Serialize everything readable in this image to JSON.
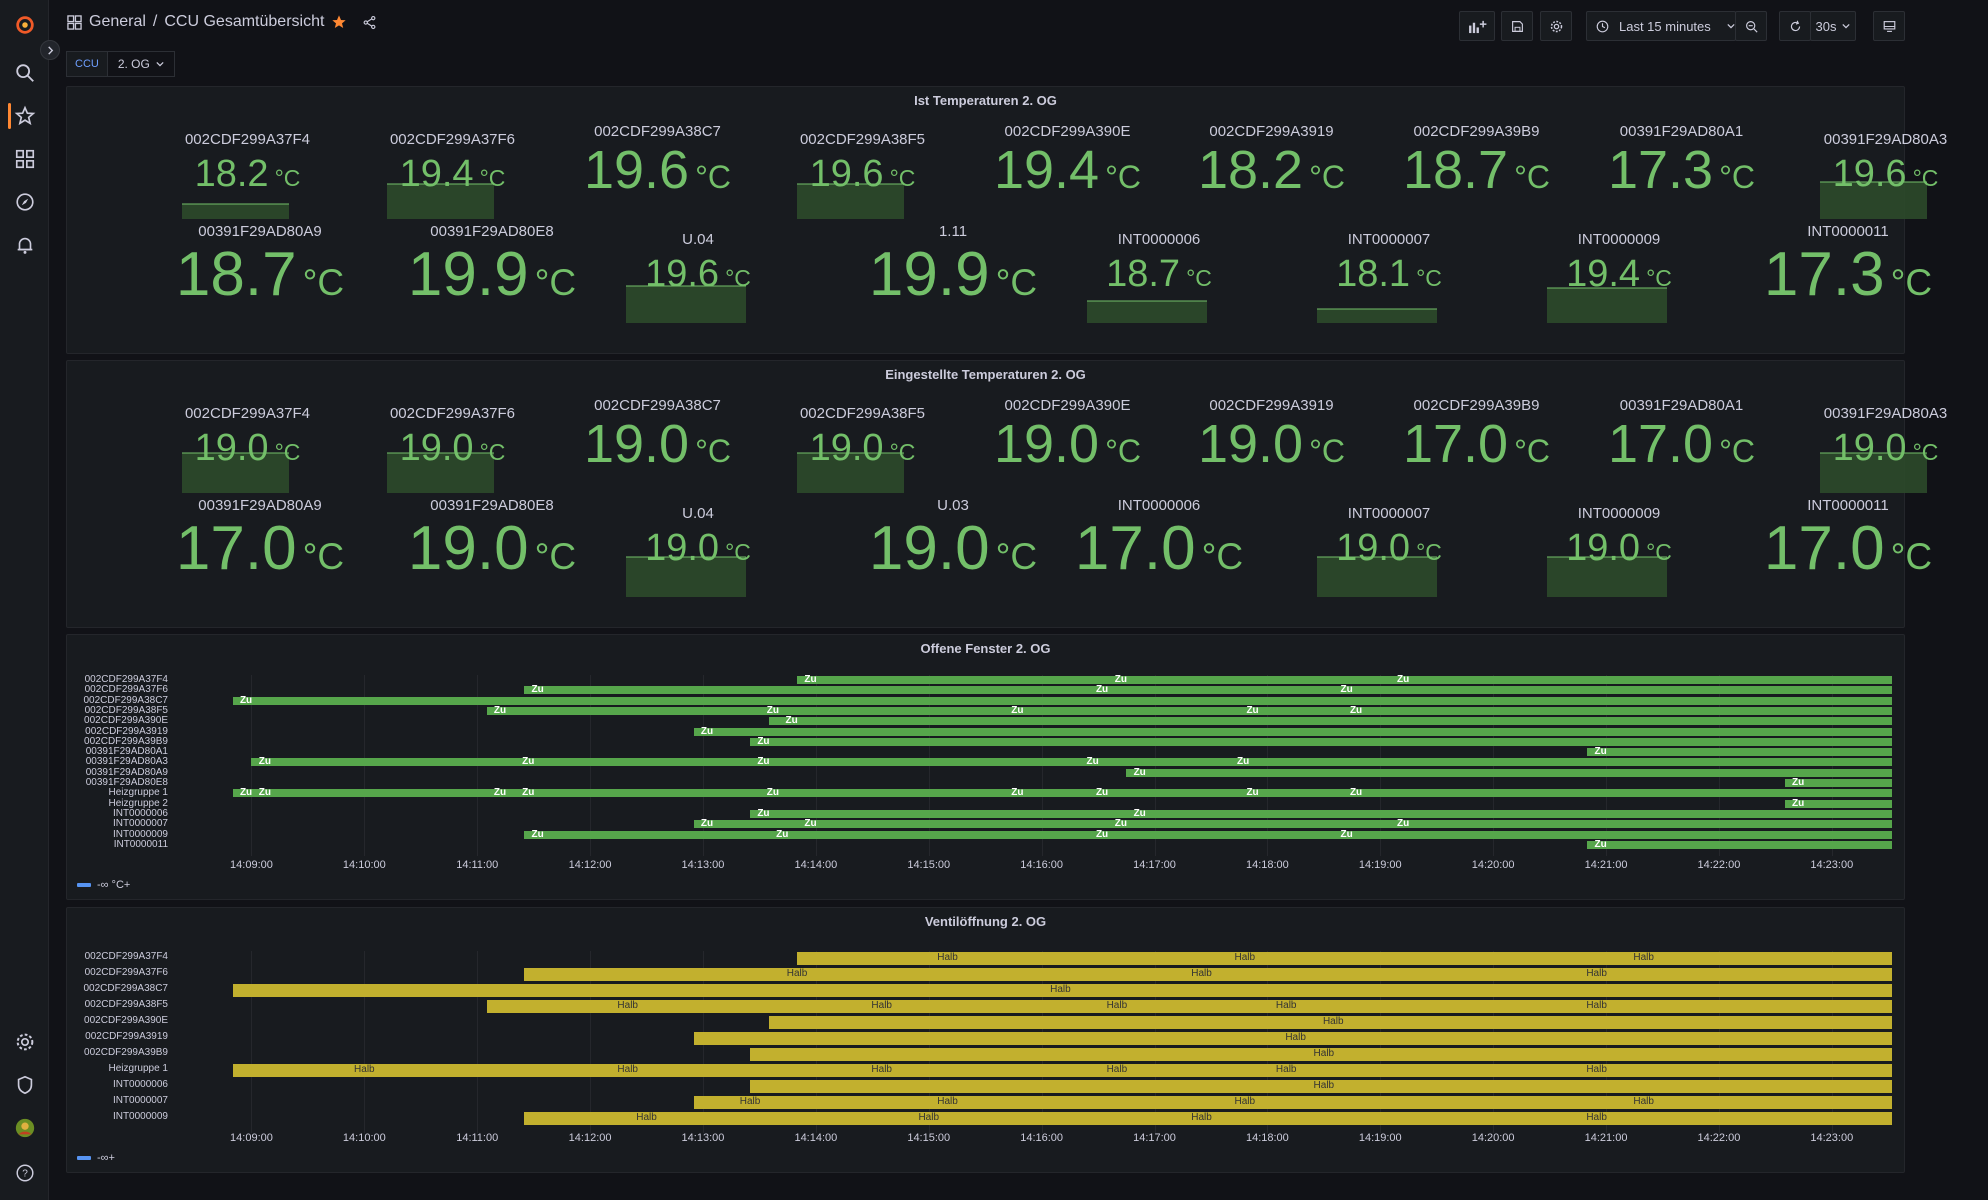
{
  "topbar": {
    "breadcrumb_root": "General",
    "breadcrumb_sep": "/",
    "title": "CCU Gesamtübersicht",
    "time_range": "Last 15 minutes",
    "refresh": "30s"
  },
  "variables": {
    "label": "CCU",
    "value": "2. OG"
  },
  "colors": {
    "green": "#73bf69",
    "yellow": "#c2b02e",
    "bar_green": "#56a64b",
    "bg": "#111217",
    "panel": "#181b1f",
    "accent": "#ff8833"
  },
  "ist": {
    "title": "Ist Temperaturen 2. OG",
    "unit": "°C",
    "items": [
      {
        "name": "002CDF299A37F4",
        "value": "18.2",
        "spark": true,
        "spark_level": 0.35
      },
      {
        "name": "002CDF299A37F6",
        "value": "19.4",
        "spark": true,
        "spark_level": 0.8
      },
      {
        "name": "002CDF299A38C7",
        "value": "19.6",
        "spark": false
      },
      {
        "name": "002CDF299A38F5",
        "value": "19.6",
        "spark": true,
        "spark_level": 0.8
      },
      {
        "name": "002CDF299A390E",
        "value": "19.4",
        "spark": false
      },
      {
        "name": "002CDF299A3919",
        "value": "18.2",
        "spark": false
      },
      {
        "name": "002CDF299A39B9",
        "value": "18.7",
        "spark": false
      },
      {
        "name": "00391F29AD80A1",
        "value": "17.3",
        "spark": false
      },
      {
        "name": "00391F29AD80A3",
        "value": "19.6",
        "spark": true,
        "spark_level": 0.85
      },
      {
        "name": "00391F29AD80A9",
        "value": "18.7",
        "spark": false
      },
      {
        "name": "00391F29AD80E8",
        "value": "19.9",
        "spark": false
      },
      {
        "name": "U.04",
        "value": "19.6",
        "spark": true,
        "spark_level": 0.85
      },
      {
        "name": "1.11",
        "value": "19.9",
        "spark": false
      },
      {
        "name": "INT0000006",
        "value": "18.7",
        "spark": true,
        "spark_level": 0.5
      },
      {
        "name": "INT0000007",
        "value": "18.1",
        "spark": true,
        "spark_level": 0.3
      },
      {
        "name": "INT0000009",
        "value": "19.4",
        "spark": true,
        "spark_level": 0.8
      },
      {
        "name": "INT0000011",
        "value": "17.3",
        "spark": false
      }
    ]
  },
  "soll": {
    "title": "Eingestellte Temperaturen 2. OG",
    "unit": "°C",
    "items": [
      {
        "name": "002CDF299A37F4",
        "value": "19.0",
        "spark": true,
        "spark_level": 0.9
      },
      {
        "name": "002CDF299A37F6",
        "value": "19.0",
        "spark": true,
        "spark_level": 0.9
      },
      {
        "name": "002CDF299A38C7",
        "value": "19.0",
        "spark": false
      },
      {
        "name": "002CDF299A38F5",
        "value": "19.0",
        "spark": true,
        "spark_level": 0.9
      },
      {
        "name": "002CDF299A390E",
        "value": "19.0",
        "spark": false
      },
      {
        "name": "002CDF299A3919",
        "value": "19.0",
        "spark": false
      },
      {
        "name": "002CDF299A39B9",
        "value": "17.0",
        "spark": false
      },
      {
        "name": "00391F29AD80A1",
        "value": "17.0",
        "spark": false
      },
      {
        "name": "00391F29AD80A3",
        "value": "19.0",
        "spark": true,
        "spark_level": 0.9
      },
      {
        "name": "00391F29AD80A9",
        "value": "17.0",
        "spark": false
      },
      {
        "name": "00391F29AD80E8",
        "value": "19.0",
        "spark": false
      },
      {
        "name": "U.04",
        "value": "19.0",
        "spark": true,
        "spark_level": 0.9
      },
      {
        "name": "U.03",
        "value": "19.0",
        "spark": false
      },
      {
        "name": "INT0000006",
        "value": "17.0",
        "spark": false
      },
      {
        "name": "INT0000007",
        "value": "19.0",
        "spark": true,
        "spark_level": 0.9
      },
      {
        "name": "INT0000009",
        "value": "19.0",
        "spark": true,
        "spark_level": 0.9
      },
      {
        "name": "INT0000011",
        "value": "17.0",
        "spark": false
      }
    ]
  },
  "fenster": {
    "title": "Offene Fenster 2. OG",
    "legend": "-∞ °C+",
    "state": "Zu",
    "ticks": [
      "14:09:00",
      "14:10:00",
      "14:11:00",
      "14:12:00",
      "14:13:00",
      "14:14:00",
      "14:15:00",
      "14:16:00",
      "14:17:00",
      "14:18:00",
      "14:19:00",
      "14:20:00",
      "14:21:00",
      "14:22:00",
      "14:23:00"
    ],
    "rows": [
      {
        "name": "002CDF299A37F4",
        "start": "14:13:50",
        "labels": [
          "14:13:55",
          "14:16:40",
          "14:19:10"
        ]
      },
      {
        "name": "002CDF299A37F6",
        "start": "14:11:25",
        "labels": [
          "14:11:30",
          "14:16:30",
          "14:18:40"
        ]
      },
      {
        "name": "002CDF299A38C7",
        "start": "14:08:50",
        "labels": [
          "14:08:55"
        ]
      },
      {
        "name": "002CDF299A38F5",
        "start": "14:11:05",
        "labels": [
          "14:11:10",
          "14:13:35",
          "14:15:45",
          "14:17:50",
          "14:18:45"
        ]
      },
      {
        "name": "002CDF299A390E",
        "start": "14:13:35",
        "labels": [
          "14:13:45"
        ]
      },
      {
        "name": "002CDF299A3919",
        "start": "14:12:55",
        "labels": [
          "14:13:00"
        ]
      },
      {
        "name": "002CDF299A39B9",
        "start": "14:13:25",
        "labels": [
          "14:13:30"
        ]
      },
      {
        "name": "00391F29AD80A1",
        "start": "14:20:50",
        "labels": [
          "14:20:55"
        ]
      },
      {
        "name": "00391F29AD80A3",
        "start": "14:09:00",
        "labels": [
          "14:09:05",
          "14:11:25",
          "14:13:30",
          "14:16:25",
          "14:17:45"
        ]
      },
      {
        "name": "00391F29AD80A9",
        "start": "14:16:45",
        "labels": [
          "14:16:50"
        ]
      },
      {
        "name": "00391F29AD80E8",
        "start": "14:22:35",
        "labels": [
          "14:22:40"
        ]
      },
      {
        "name": "Heizgruppe 1",
        "start": "14:08:50",
        "labels": [
          "14:08:55",
          "14:09:05",
          "14:11:10",
          "14:11:25",
          "14:13:35",
          "14:15:45",
          "14:16:30",
          "14:17:50",
          "14:18:45"
        ]
      },
      {
        "name": "Heizgruppe 2",
        "start": "14:22:35",
        "labels": [
          "14:22:40"
        ]
      },
      {
        "name": "INT0000006",
        "start": "14:13:25",
        "labels": [
          "14:13:30",
          "14:16:50"
        ]
      },
      {
        "name": "INT0000007",
        "start": "14:12:55",
        "labels": [
          "14:13:00",
          "14:13:55",
          "14:16:40",
          "14:19:10"
        ]
      },
      {
        "name": "INT0000009",
        "start": "14:11:25",
        "labels": [
          "14:11:30",
          "14:13:40",
          "14:16:30",
          "14:18:40"
        ]
      },
      {
        "name": "INT0000011",
        "start": "14:20:50",
        "labels": [
          "14:20:55"
        ]
      }
    ]
  },
  "ventil": {
    "title": "Ventilöffnung 2. OG",
    "legend": "-∞+",
    "state": "Halb",
    "ticks": [
      "14:09:00",
      "14:10:00",
      "14:11:00",
      "14:12:00",
      "14:13:00",
      "14:14:00",
      "14:15:00",
      "14:16:00",
      "14:17:00",
      "14:18:00",
      "14:19:00",
      "14:20:00",
      "14:21:00",
      "14:22:00",
      "14:23:00"
    ],
    "rows": [
      {
        "name": "002CDF299A37F4",
        "start": "14:13:50",
        "labels": [
          "14:15:10",
          "14:17:48",
          "14:21:20"
        ]
      },
      {
        "name": "002CDF299A37F6",
        "start": "14:11:25",
        "labels": [
          "14:13:50",
          "14:17:25",
          "14:20:55"
        ]
      },
      {
        "name": "002CDF299A38C7",
        "start": "14:08:50",
        "labels": [
          "14:16:10"
        ]
      },
      {
        "name": "002CDF299A38F5",
        "start": "14:11:05",
        "labels": [
          "14:12:20",
          "14:14:35",
          "14:16:40",
          "14:18:10",
          "14:20:55"
        ]
      },
      {
        "name": "002CDF299A390E",
        "start": "14:13:35",
        "labels": [
          "14:18:35"
        ]
      },
      {
        "name": "002CDF299A3919",
        "start": "14:12:55",
        "labels": [
          "14:18:15"
        ]
      },
      {
        "name": "002CDF299A39B9",
        "start": "14:13:25",
        "labels": [
          "14:18:30"
        ]
      },
      {
        "name": "Heizgruppe 1",
        "start": "14:08:50",
        "labels": [
          "14:10:00",
          "14:12:20",
          "14:14:35",
          "14:16:40",
          "14:18:10",
          "14:20:55"
        ]
      },
      {
        "name": "INT0000006",
        "start": "14:13:25",
        "labels": [
          "14:18:30"
        ]
      },
      {
        "name": "INT0000007",
        "start": "14:12:55",
        "labels": [
          "14:13:25",
          "14:15:10",
          "14:17:48",
          "14:21:20"
        ]
      },
      {
        "name": "INT0000009",
        "start": "14:11:25",
        "labels": [
          "14:12:30",
          "14:15:00",
          "14:17:25",
          "14:20:55"
        ]
      }
    ]
  }
}
